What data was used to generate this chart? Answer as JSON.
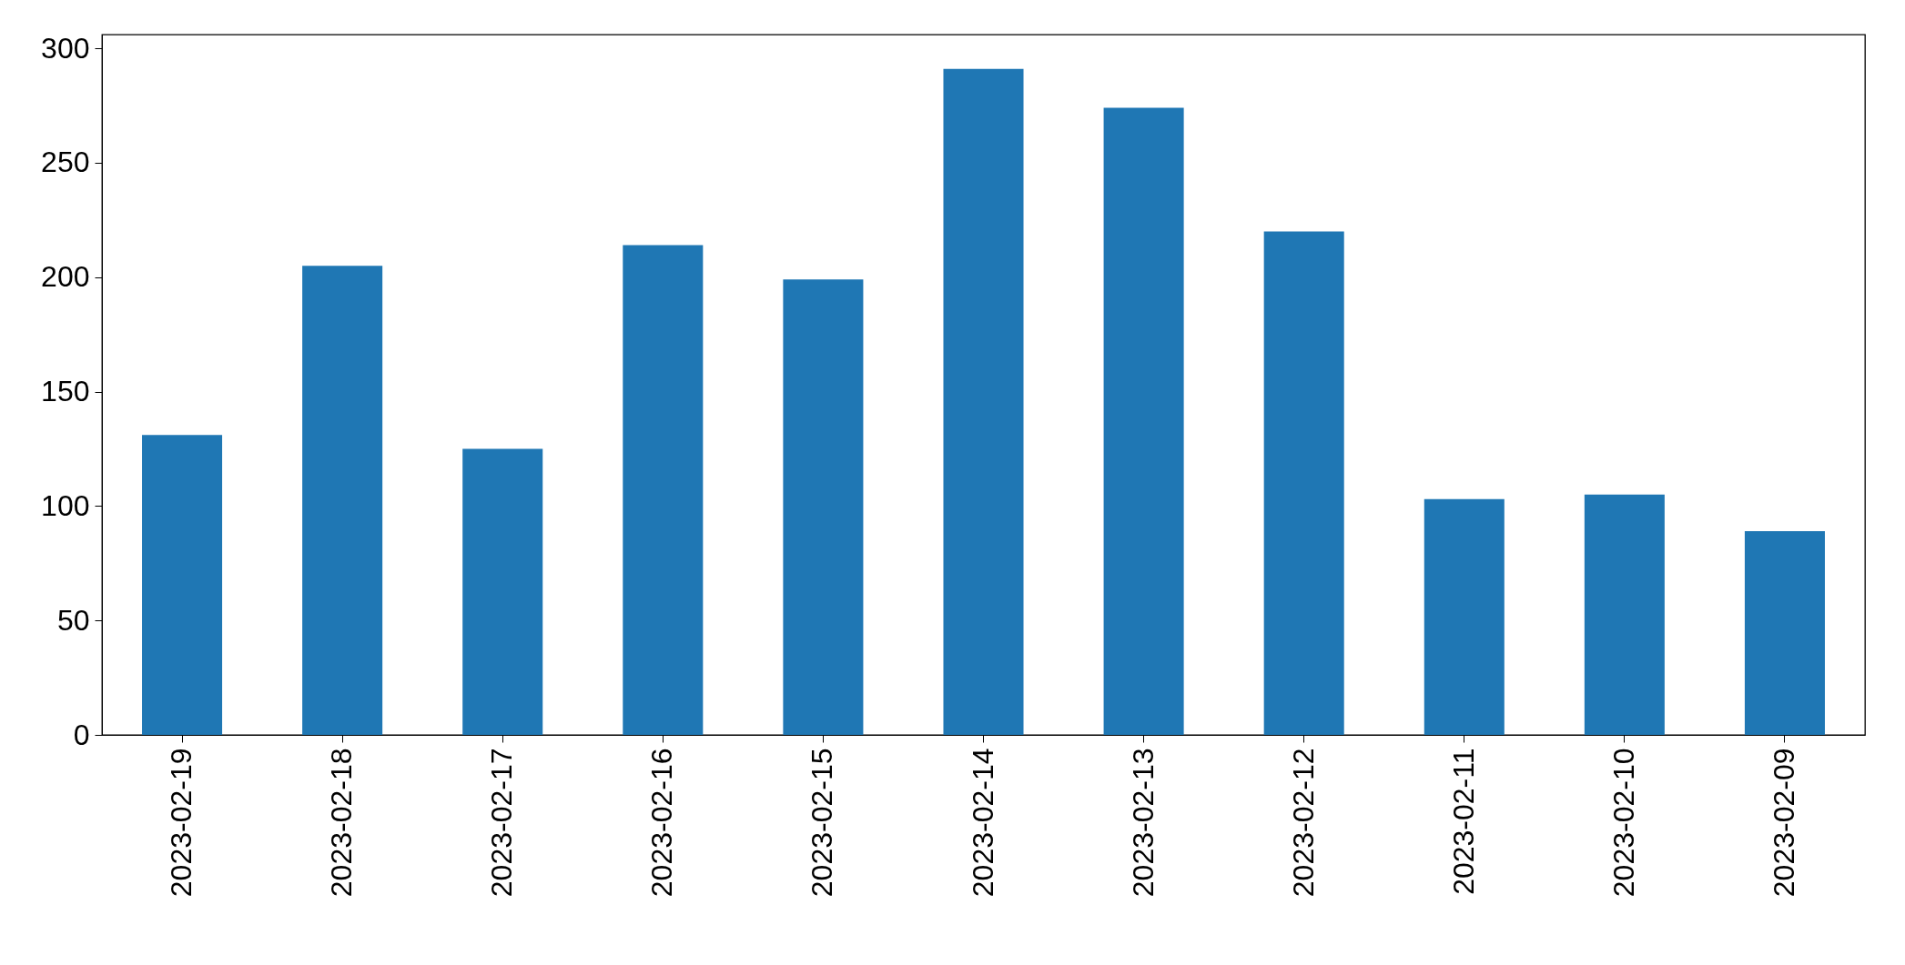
{
  "chart_data": {
    "type": "bar",
    "categories": [
      "2023-02-19",
      "2023-02-18",
      "2023-02-17",
      "2023-02-16",
      "2023-02-15",
      "2023-02-14",
      "2023-02-13",
      "2023-02-12",
      "2023-02-11",
      "2023-02-10",
      "2023-02-09"
    ],
    "values": [
      131,
      205,
      125,
      214,
      199,
      291,
      274,
      220,
      103,
      105,
      89
    ],
    "color": "#1f77b4",
    "ylim": [
      0,
      306
    ],
    "yticks": [
      0,
      50,
      100,
      150,
      200,
      250,
      300
    ],
    "grid": false
  }
}
